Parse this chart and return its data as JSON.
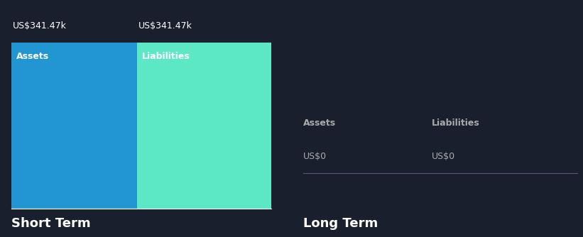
{
  "background_color": "#1a1f2e",
  "short_term": {
    "assets_label": "Assets",
    "liabilities_label": "Liabilities",
    "assets_value": "US$341.47k",
    "liabilities_value": "US$341.47k",
    "assets_color": "#2196d3",
    "liabilities_color": "#5de8c5",
    "section_label": "Short Term"
  },
  "long_term": {
    "assets_label": "Assets",
    "liabilities_label": "Liabilities",
    "assets_value": "US$0",
    "liabilities_value": "US$0",
    "section_label": "Long Term"
  },
  "label_color": "#ffffff",
  "sublabel_color": "#aaaaaa",
  "value_color": "#aaaaaa",
  "section_label_color": "#ffffff",
  "section_label_fontsize": 13,
  "bar_label_fontsize": 9,
  "value_fontsize": 9,
  "header_fontsize": 9
}
